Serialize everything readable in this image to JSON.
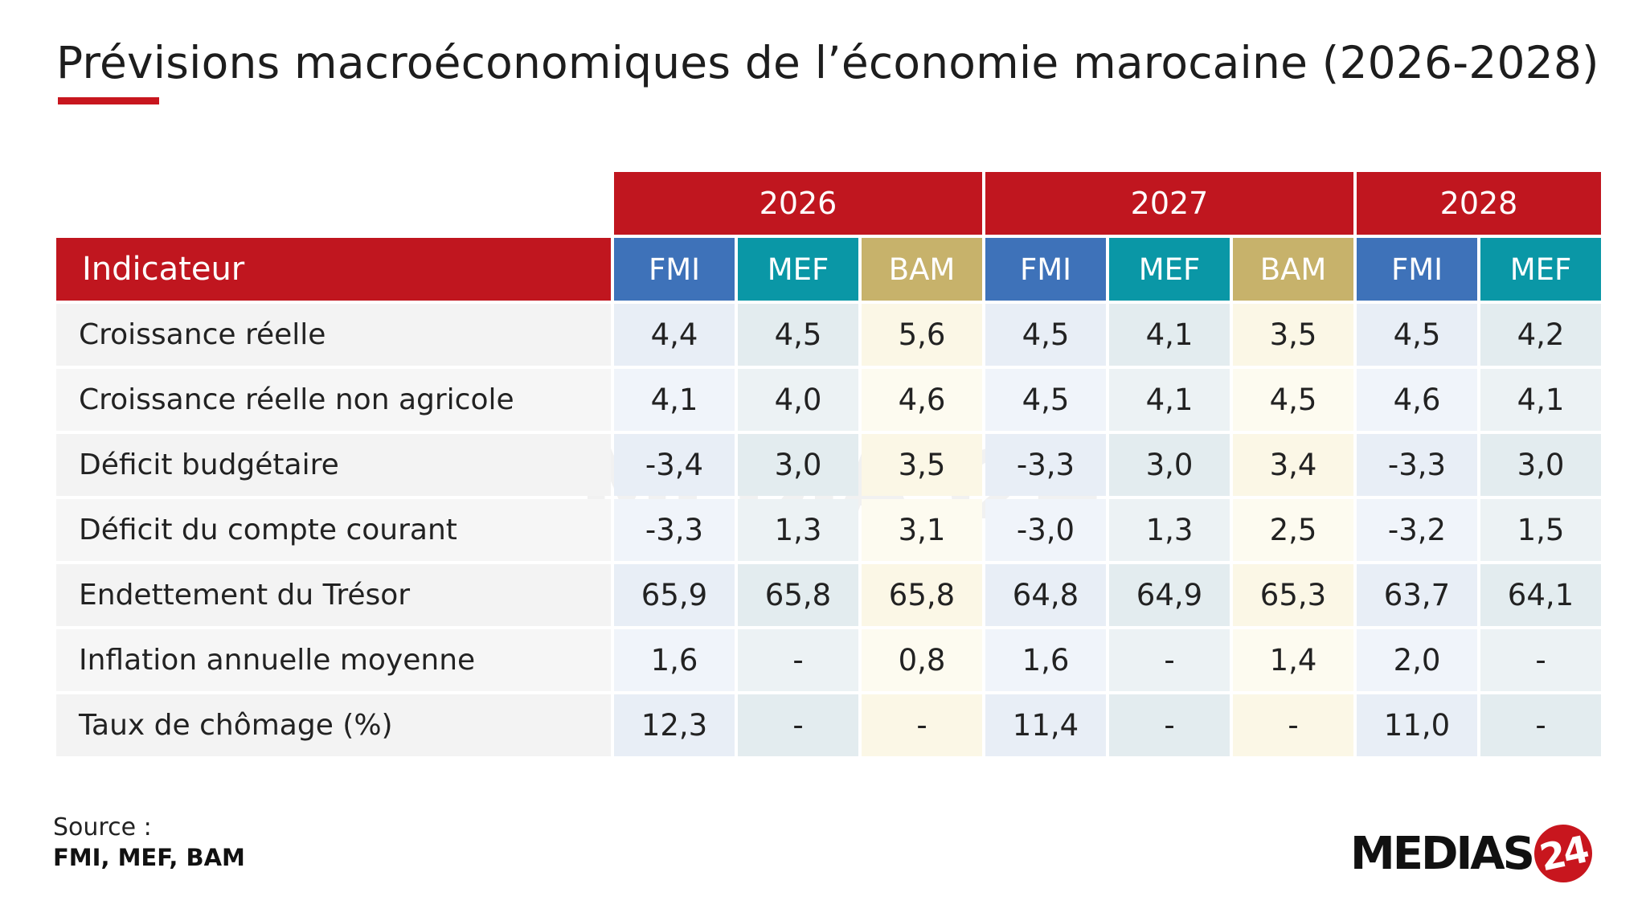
{
  "title": "Prévisions macroéconomiques de l’économie marocaine (2026-2028)",
  "colors": {
    "header_red": "#c0161f",
    "fmi_blue": "#3e72b9",
    "mef_teal": "#0a97a6",
    "bam_gold": "#c7b26b"
  },
  "table": {
    "indicator_header": "Indicateur",
    "years": [
      "2026",
      "2027",
      "2028"
    ],
    "sources": [
      "FMI",
      "MEF",
      "BAM",
      "FMI",
      "MEF",
      "BAM",
      "FMI",
      "MEF"
    ],
    "rows": [
      {
        "label": "Croissance réelle",
        "values": [
          "4,4",
          "4,5",
          "5,6",
          "4,5",
          "4,1",
          "3,5",
          "4,5",
          "4,2"
        ]
      },
      {
        "label": "Croissance réelle non agricole",
        "values": [
          "4,1",
          "4,0",
          "4,6",
          "4,5",
          "4,1",
          "4,5",
          "4,6",
          "4,1"
        ]
      },
      {
        "label": "Déficit budgétaire",
        "values": [
          "-3,4",
          "3,0",
          "3,5",
          "-3,3",
          "3,0",
          "3,4",
          "-3,3",
          "3,0"
        ]
      },
      {
        "label": "Déficit du compte courant",
        "values": [
          "-3,3",
          "1,3",
          "3,1",
          "-3,0",
          "1,3",
          "2,5",
          "-3,2",
          "1,5"
        ]
      },
      {
        "label": "Endettement du Trésor",
        "values": [
          "65,9",
          "65,8",
          "65,8",
          "64,8",
          "64,9",
          "65,3",
          "63,7",
          "64,1"
        ]
      },
      {
        "label": "Inflation annuelle moyenne",
        "values": [
          "1,6",
          "-",
          "0,8",
          "1,6",
          "-",
          "1,4",
          "2,0",
          "-"
        ]
      },
      {
        "label": "Taux de chômage (%)",
        "values": [
          "12,3",
          "-",
          "-",
          "11,4",
          "-",
          "-",
          "11,0",
          "-"
        ]
      }
    ]
  },
  "source": {
    "label": "Source :",
    "value": "FMI, MEF, BAM"
  },
  "logo": {
    "text": "MEDIAS",
    "badge": "24",
    "watermark": "MEDIAS24"
  },
  "chart_data": {
    "type": "table",
    "title": "Prévisions macroéconomiques de l’économie marocaine (2026-2028)",
    "columns": [
      {
        "year": "2026",
        "source": "FMI"
      },
      {
        "year": "2026",
        "source": "MEF"
      },
      {
        "year": "2026",
        "source": "BAM"
      },
      {
        "year": "2027",
        "source": "FMI"
      },
      {
        "year": "2027",
        "source": "MEF"
      },
      {
        "year": "2027",
        "source": "BAM"
      },
      {
        "year": "2028",
        "source": "FMI"
      },
      {
        "year": "2028",
        "source": "MEF"
      }
    ],
    "rows": [
      {
        "indicator": "Croissance réelle",
        "values": [
          4.4,
          4.5,
          5.6,
          4.5,
          4.1,
          3.5,
          4.5,
          4.2
        ]
      },
      {
        "indicator": "Croissance réelle non agricole",
        "values": [
          4.1,
          4.0,
          4.6,
          4.5,
          4.1,
          4.5,
          4.6,
          4.1
        ]
      },
      {
        "indicator": "Déficit budgétaire",
        "values": [
          -3.4,
          3.0,
          3.5,
          -3.3,
          3.0,
          3.4,
          -3.3,
          3.0
        ]
      },
      {
        "indicator": "Déficit du compte courant",
        "values": [
          -3.3,
          1.3,
          3.1,
          -3.0,
          1.3,
          2.5,
          -3.2,
          1.5
        ]
      },
      {
        "indicator": "Endettement du Trésor",
        "values": [
          65.9,
          65.8,
          65.8,
          64.8,
          64.9,
          65.3,
          63.7,
          64.1
        ]
      },
      {
        "indicator": "Inflation annuelle moyenne",
        "values": [
          1.6,
          null,
          0.8,
          1.6,
          null,
          1.4,
          2.0,
          null
        ]
      },
      {
        "indicator": "Taux de chômage (%)",
        "values": [
          12.3,
          null,
          null,
          11.4,
          null,
          null,
          11.0,
          null
        ]
      }
    ]
  }
}
